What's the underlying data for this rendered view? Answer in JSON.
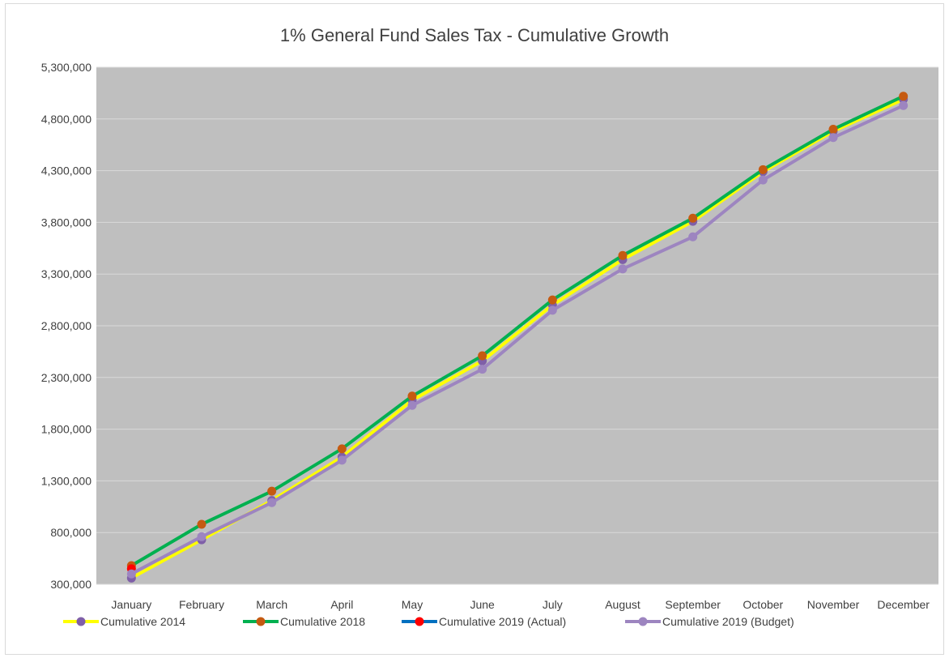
{
  "chart_data": {
    "type": "line",
    "title": "1% General Fund Sales Tax - Cumulative Growth",
    "xlabel": "",
    "ylabel": "",
    "ylim": [
      300000,
      5300000
    ],
    "yticks": [
      300000,
      800000,
      1300000,
      1800000,
      2300000,
      2800000,
      3300000,
      3800000,
      4300000,
      4800000,
      5300000
    ],
    "ytick_labels": [
      "300,000",
      "800,000",
      "1,300,000",
      "1,800,000",
      "2,300,000",
      "2,800,000",
      "3,300,000",
      "3,800,000",
      "4,300,000",
      "4,800,000",
      "5,300,000"
    ],
    "grid": true,
    "legend_position": "bottom",
    "plot_background": "#bfbfbf",
    "categories": [
      "January",
      "February",
      "March",
      "April",
      "May",
      "June",
      "July",
      "August",
      "September",
      "October",
      "November",
      "December"
    ],
    "series": [
      {
        "name": "Cumulative 2014",
        "line_color": "#ffff00",
        "marker_color": "#7f5fa8",
        "values": [
          360000,
          730000,
          1110000,
          1530000,
          2080000,
          2460000,
          3000000,
          3440000,
          3810000,
          4290000,
          4680000,
          4990000
        ]
      },
      {
        "name": "Cumulative 2018",
        "line_color": "#00b050",
        "marker_color": "#c55a11",
        "values": [
          480000,
          880000,
          1200000,
          1610000,
          2120000,
          2510000,
          3050000,
          3480000,
          3840000,
          4310000,
          4700000,
          5020000
        ]
      },
      {
        "name": "Cumulative 2019 (Actual)",
        "line_color": "#0070c0",
        "marker_color": "#ff0000",
        "values": [
          450000,
          null,
          null,
          null,
          null,
          null,
          null,
          null,
          null,
          null,
          null,
          null
        ]
      },
      {
        "name": "Cumulative 2019 (Budget)",
        "line_color": "#9d85c0",
        "marker_color": "#9d85c0",
        "values": [
          400000,
          760000,
          1090000,
          1500000,
          2030000,
          2380000,
          2950000,
          3350000,
          3660000,
          4210000,
          4620000,
          4930000
        ]
      }
    ]
  }
}
